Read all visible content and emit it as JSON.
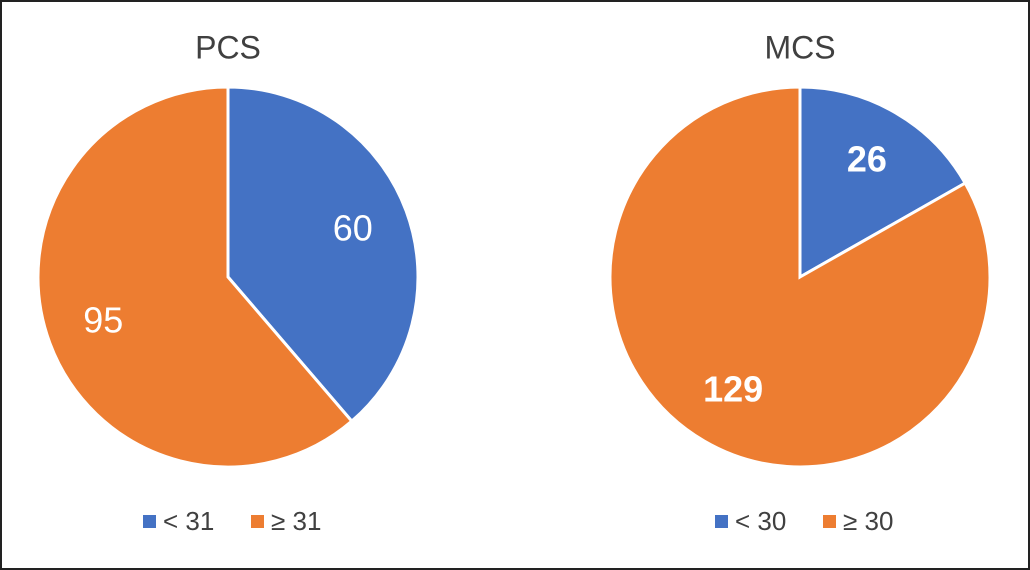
{
  "chart_data": [
    {
      "type": "pie",
      "title": "PCS",
      "categories": [
        "< 31",
        "≥ 31"
      ],
      "values": [
        60,
        95
      ],
      "colors": [
        "#4472c4",
        "#ed7d31"
      ],
      "label_weight": "normal"
    },
    {
      "type": "pie",
      "title": "MCS",
      "categories": [
        "< 30",
        "≥ 30"
      ],
      "values": [
        26,
        129
      ],
      "colors": [
        "#4472c4",
        "#ed7d31"
      ],
      "label_weight": "bold"
    }
  ]
}
